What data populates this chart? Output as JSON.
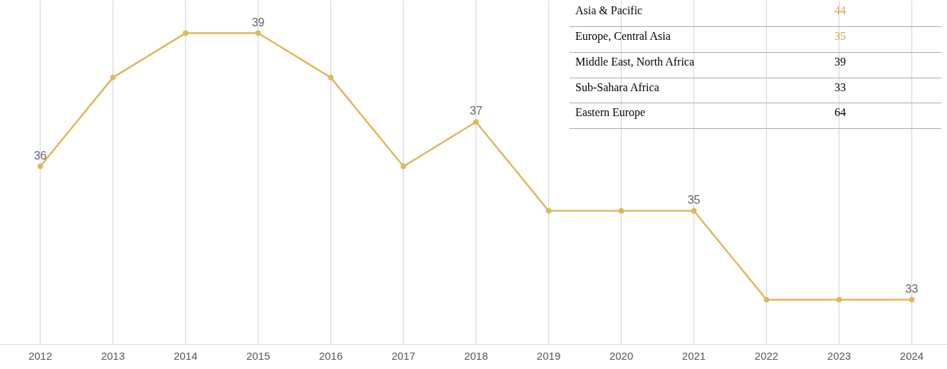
{
  "chart_data": [
    {
      "type": "line",
      "categories": [
        "2012",
        "2013",
        "2014",
        "2015",
        "2016",
        "2017",
        "2018",
        "2019",
        "2020",
        "2021",
        "2022",
        "2023",
        "2024"
      ],
      "series": [
        {
          "color": "#ddb85c",
          "values": [
            36,
            38,
            39,
            39,
            38,
            36,
            37,
            35,
            35,
            35,
            33,
            33,
            33
          ],
          "value_labels": [
            "36",
            null,
            null,
            "39",
            null,
            null,
            "37",
            null,
            null,
            "35",
            null,
            null,
            "33"
          ]
        }
      ],
      "tick_labels": "x",
      "grid": "x",
      "marker": "circle",
      "line_style": "solid"
    },
    {
      "type": "other",
      "categories": [
        "Asia & Pacific",
        "Europe, Central Asia",
        "Middle East, North Africa",
        "Sub-Sahara Africa",
        "Eastern Europe"
      ],
      "values": [
        44,
        35,
        39,
        33,
        64
      ],
      "colors": [
        "#d4a84b",
        "#d4a84b",
        "#000000",
        "#000000",
        "#000000"
      ],
      "data_labels": true
    }
  ]
}
